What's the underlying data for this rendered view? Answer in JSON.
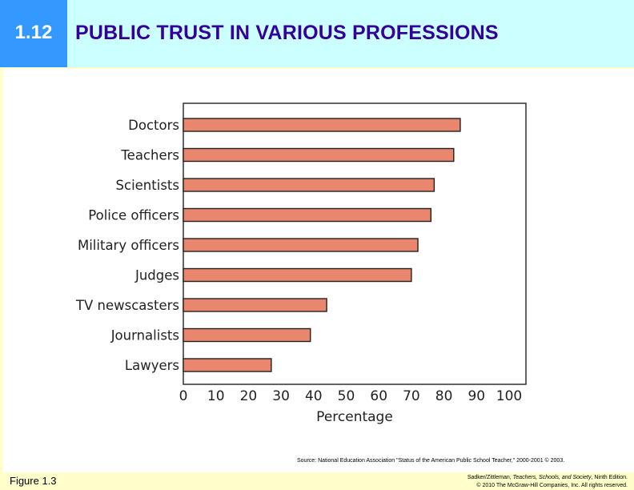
{
  "header": {
    "number": "1.12",
    "title": "PUBLIC TRUST IN VARIOUS PROFESSIONS"
  },
  "colors": {
    "header_bg": "#ccffff",
    "number_bg": "#3399ff",
    "title_text": "#330099",
    "page_bg": "#ffffcc",
    "bar_fill": "#e8866e",
    "bar_stroke": "#222222"
  },
  "chart_data": {
    "type": "bar",
    "orientation": "horizontal",
    "categories": [
      "Doctors",
      "Teachers",
      "Scientists",
      "Police officers",
      "Military officers",
      "Judges",
      "TV newscasters",
      "Journalists",
      "Lawyers"
    ],
    "values": [
      85,
      83,
      77,
      76,
      72,
      70,
      44,
      39,
      27
    ],
    "xlabel": "Percentage",
    "xlim": [
      0,
      105
    ],
    "xticks": [
      0,
      10,
      20,
      30,
      40,
      50,
      60,
      70,
      80,
      90,
      100
    ],
    "grid": false,
    "legend": "none"
  },
  "footer": {
    "source": "Source: National Education Association \"Status of the American Public School Teacher,\" 2000-2001 © 2003.",
    "figure": "Figure 1.3",
    "credit_line1_authors": "Sadker/Zittleman, ",
    "credit_line1_book": "Teachers, Schools, and Society",
    "credit_line1_edition": ", Ninth Edition.",
    "credit_line2": "© 2010 The McGraw-Hill Companies, Inc. All rights reserved."
  }
}
